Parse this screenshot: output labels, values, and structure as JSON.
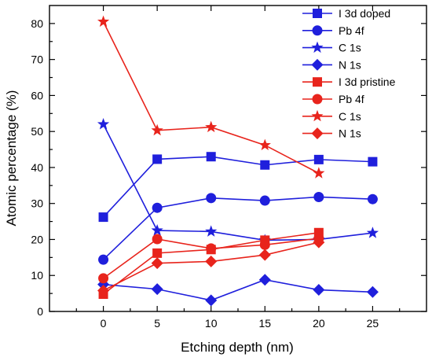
{
  "chart_data": {
    "type": "line",
    "title": "",
    "xlabel": "Etching depth (nm)",
    "ylabel": "Atomic percentage (%)",
    "xlim": [
      -5,
      30
    ],
    "ylim": [
      0,
      85
    ],
    "xticks": [
      0,
      5,
      10,
      15,
      20,
      25
    ],
    "yticks": [
      0,
      10,
      20,
      30,
      40,
      50,
      60,
      70,
      80
    ],
    "grid": false,
    "legend_position": "top-right",
    "series": [
      {
        "name": "I 3d doped",
        "color": "#1f1fdc",
        "marker": "square",
        "x": [
          0,
          5,
          10,
          15,
          20,
          25
        ],
        "y": [
          26.2,
          42.3,
          43.0,
          40.7,
          42.2,
          41.6
        ]
      },
      {
        "name": "Pb 4f",
        "color": "#1f1fdc",
        "marker": "circle",
        "x": [
          0,
          5,
          10,
          15,
          20,
          25
        ],
        "y": [
          14.4,
          28.8,
          31.5,
          30.8,
          31.8,
          31.2
        ]
      },
      {
        "name": "C 1s",
        "color": "#1f1fdc",
        "marker": "star",
        "x": [
          0,
          5,
          10,
          15,
          20,
          25
        ],
        "y": [
          52.0,
          22.5,
          22.2,
          19.8,
          20.0,
          21.8
        ]
      },
      {
        "name": "N 1s",
        "color": "#1f1fdc",
        "marker": "diamond",
        "x": [
          0,
          5,
          10,
          15,
          20,
          25
        ],
        "y": [
          7.5,
          6.2,
          3.1,
          8.8,
          6.0,
          5.4
        ]
      },
      {
        "name": "I 3d pristine",
        "color": "#e8241c",
        "marker": "square",
        "x": [
          0,
          5,
          10,
          15,
          20
        ],
        "y": [
          4.8,
          16.2,
          17.2,
          19.8,
          21.9
        ]
      },
      {
        "name": "Pb 4f",
        "color": "#e8241c",
        "marker": "circle",
        "x": [
          0,
          5,
          10,
          15,
          20
        ],
        "y": [
          9.2,
          20.1,
          17.5,
          18.5,
          20.3
        ]
      },
      {
        "name": "C 1s",
        "color": "#e8241c",
        "marker": "star",
        "x": [
          0,
          5,
          10,
          15,
          20
        ],
        "y": [
          80.5,
          50.3,
          51.2,
          46.2,
          38.4
        ]
      },
      {
        "name": "N 1s",
        "color": "#e8241c",
        "marker": "diamond",
        "x": [
          0,
          5,
          10,
          15,
          20
        ],
        "y": [
          5.8,
          13.4,
          13.9,
          15.7,
          19.2
        ]
      }
    ]
  }
}
